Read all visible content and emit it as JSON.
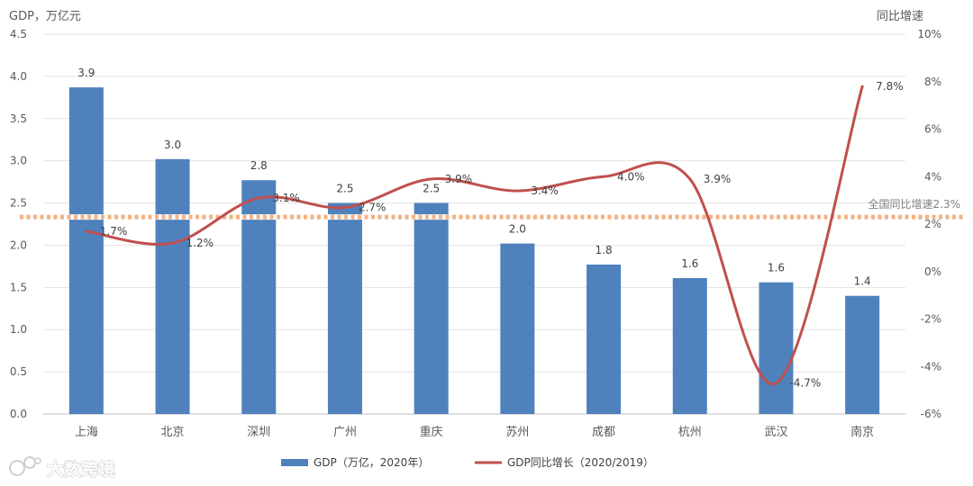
{
  "chart_data": {
    "type": "bar",
    "categories": [
      "上海",
      "北京",
      "深圳",
      "广州",
      "重庆",
      "苏州",
      "成都",
      "杭州",
      "武汉",
      "南京"
    ],
    "series": [
      {
        "name": "GDP（万亿，2020年）",
        "type": "bar",
        "axis": "left",
        "color": "#4f81bd",
        "values": [
          3.87,
          3.02,
          2.77,
          2.5,
          2.5,
          2.02,
          1.77,
          1.61,
          1.56,
          1.4
        ],
        "labels": [
          "3.9",
          "3.0",
          "2.8",
          "2.5",
          "2.5",
          "2.0",
          "1.8",
          "1.6",
          "1.6",
          "1.4"
        ]
      },
      {
        "name": "GDP同比增长（2020/2019）",
        "type": "line",
        "axis": "right",
        "color": "#c0504d",
        "values": [
          1.7,
          1.2,
          3.1,
          2.7,
          3.9,
          3.4,
          4.0,
          3.9,
          -4.7,
          7.8
        ],
        "labels": [
          "1.7%",
          "1.2%",
          "3.1%",
          "2.7%",
          "3.9%",
          "3.4%",
          "4.0%",
          "3.9%",
          "-4.7%",
          "7.8%"
        ]
      }
    ],
    "y_left": {
      "title": "GDP，万亿元",
      "range": [
        0,
        4.5
      ],
      "ticks": [
        "0.0",
        "0.5",
        "1.0",
        "1.5",
        "2.0",
        "2.5",
        "3.0",
        "3.5",
        "4.0",
        "4.5"
      ]
    },
    "y_right": {
      "title": "同比增速",
      "range": [
        -6,
        10
      ],
      "ticks": [
        "-6%",
        "-4%",
        "-2%",
        "0%",
        "2%",
        "4%",
        "6%",
        "8%",
        "10%"
      ]
    },
    "reference_line": {
      "label": "全国同比增速2.3%",
      "value": 2.3,
      "axis": "right",
      "color": "#f4b183"
    },
    "grid": true,
    "legend_position": "bottom"
  },
  "watermark": {
    "text": "大数跨境"
  }
}
